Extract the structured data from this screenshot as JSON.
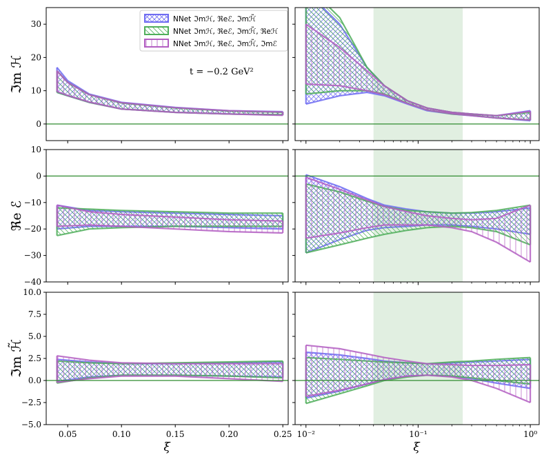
{
  "figure": {
    "annotation": "t = −0.2 GeV²",
    "colors": {
      "blue": "#6f6cf2",
      "green": "#4fae5a",
      "purple": "#b35ec2",
      "zero_line": "#2e8b2e",
      "band": "#d7ead7"
    }
  },
  "chart_data": [
    {
      "type": "area",
      "panel": "top-left",
      "ylabel": "ℑm ℋ",
      "xlabel": "",
      "xlim": [
        0.03,
        0.255
      ],
      "ylim": [
        -5,
        35
      ],
      "xticks": [
        "0.05",
        "0.10",
        "0.15",
        "0.20",
        "0.25"
      ],
      "yticks": [
        "0",
        "10",
        "20",
        "30"
      ],
      "x": [
        0.04,
        0.05,
        0.07,
        0.1,
        0.15,
        0.2,
        0.25
      ],
      "series": [
        {
          "name": "NNet ℑmℋ, ℜeℰ, ℑmℋ̃",
          "color": "#6f6cf2",
          "hatch": "cross",
          "upper": [
            17,
            13,
            9,
            6.5,
            5,
            4,
            3.7
          ],
          "lower": [
            9.5,
            8.5,
            6.5,
            4.5,
            3.5,
            3,
            2.7
          ]
        },
        {
          "name": "NNet ℑmℋ, ℜeℰ, ℑmℋ̃, ℜeℋ",
          "color": "#4fae5a",
          "hatch": "diag",
          "upper": [
            16,
            12.5,
            8.8,
            6.3,
            4.8,
            3.9,
            3.5
          ],
          "lower": [
            9.5,
            8.5,
            6.5,
            4.5,
            3.5,
            3,
            2.8
          ]
        },
        {
          "name": "NNet ℑmℋ, ℜeℰ, ℑmℋ̃, ℑmℰ",
          "color": "#b35ec2",
          "hatch": "vert",
          "upper": [
            16,
            12.5,
            8.8,
            6.4,
            4.9,
            4,
            3.6
          ],
          "lower": [
            9.8,
            8.6,
            6.6,
            4.5,
            3.5,
            3,
            2.6
          ]
        }
      ]
    },
    {
      "type": "area",
      "panel": "top-right",
      "xlabel": "",
      "xscale": "log",
      "xlim": [
        0.008,
        1.2
      ],
      "ylim": [
        -5,
        35
      ],
      "shaded_x_range": [
        0.04,
        0.25
      ],
      "x": [
        0.01,
        0.02,
        0.035,
        0.05,
        0.08,
        0.12,
        0.2,
        0.3,
        0.5,
        1.0
      ],
      "series": [
        {
          "name": "NNet ℑmℋ, ℜeℰ, ℑmℋ̃",
          "color": "#6f6cf2",
          "hatch": "cross",
          "upper": [
            40,
            30,
            17,
            11.5,
            7,
            4.8,
            3.5,
            3,
            2.5,
            4
          ],
          "lower": [
            6,
            8.5,
            9.5,
            8.5,
            6,
            4,
            3,
            2.5,
            1.8,
            1
          ]
        },
        {
          "name": "NNet ℑmℋ, ℜeℰ, ℑmℋ̃, ℜeℋ",
          "color": "#4fae5a",
          "hatch": "diag",
          "upper": [
            42,
            32,
            17,
            11.5,
            7,
            4.8,
            3.5,
            3,
            2.5,
            3.5
          ],
          "lower": [
            9,
            10,
            10,
            9,
            6.3,
            4.2,
            3,
            2.6,
            1.8,
            1.2
          ]
        },
        {
          "name": "NNet ℑmℋ, ℜeℰ, ℑmℋ̃, ℑmℰ",
          "color": "#b35ec2",
          "hatch": "vert",
          "upper": [
            30,
            23,
            16,
            11.5,
            7,
            4.8,
            3.5,
            3,
            2.5,
            3.8
          ],
          "lower": [
            12,
            11.5,
            10,
            8.8,
            6.2,
            4.2,
            3.1,
            2.5,
            1.8,
            1.2
          ]
        }
      ]
    },
    {
      "type": "area",
      "panel": "middle-left",
      "ylabel": "ℜe ℰ",
      "xlabel": "",
      "xlim": [
        0.03,
        0.255
      ],
      "ylim": [
        -40,
        10
      ],
      "xticks": [
        "0.05",
        "0.10",
        "0.15",
        "0.20",
        "0.25"
      ],
      "yticks": [
        "−40",
        "−30",
        "−20",
        "−10",
        "0",
        "10"
      ],
      "x": [
        0.04,
        0.07,
        0.1,
        0.15,
        0.2,
        0.25
      ],
      "series": [
        {
          "name": "NNet ℑmℋ, ℜeℰ, ℑmℋ̃",
          "color": "#6f6cf2",
          "hatch": "cross",
          "upper": [
            -11,
            -13,
            -13.5,
            -14,
            -14.5,
            -15
          ],
          "lower": [
            -20,
            -19,
            -19,
            -19,
            -19.5,
            -20
          ]
        },
        {
          "name": "NNet ℑmℋ, ℜeℰ, ℑmℋ̃, ℜeℋ",
          "color": "#4fae5a",
          "hatch": "diag",
          "upper": [
            -12,
            -12.5,
            -13,
            -13.5,
            -14,
            -14
          ],
          "lower": [
            -22.5,
            -20,
            -19.5,
            -19,
            -19,
            -19
          ]
        },
        {
          "name": "NNet ℑmℋ, ℜeℰ, ℑmℋ̃, ℑmℰ",
          "color": "#b35ec2",
          "hatch": "vert",
          "upper": [
            -11,
            -13.5,
            -14.5,
            -15.5,
            -16.5,
            -17
          ],
          "lower": [
            -19,
            -18.5,
            -19,
            -20,
            -21,
            -21.5
          ]
        }
      ]
    },
    {
      "type": "area",
      "panel": "middle-right",
      "xlabel": "",
      "xscale": "log",
      "xlim": [
        0.008,
        1.2
      ],
      "ylim": [
        -40,
        10
      ],
      "shaded_x_range": [
        0.04,
        0.25
      ],
      "x": [
        0.01,
        0.02,
        0.035,
        0.05,
        0.08,
        0.12,
        0.2,
        0.3,
        0.5,
        1.0
      ],
      "series": [
        {
          "name": "NNet ℑmℋ, ℜeℰ, ℑmℋ̃",
          "color": "#6f6cf2",
          "hatch": "cross",
          "upper": [
            0.5,
            -4,
            -8.5,
            -11,
            -12.5,
            -13.5,
            -14,
            -14,
            -13.5,
            -12
          ],
          "lower": [
            -29,
            -24,
            -20.5,
            -19.5,
            -19,
            -18.5,
            -18.5,
            -19,
            -20,
            -22
          ]
        },
        {
          "name": "NNet ℑmℋ, ℜeℰ, ℑmℋ̃, ℜeℋ",
          "color": "#4fae5a",
          "hatch": "diag",
          "upper": [
            -3,
            -6,
            -9.5,
            -11.5,
            -13,
            -13.5,
            -14,
            -13.8,
            -13,
            -11
          ],
          "lower": [
            -29,
            -26,
            -23.5,
            -22,
            -20.5,
            -19.5,
            -19,
            -19.5,
            -21,
            -26
          ]
        },
        {
          "name": "NNet ℑmℋ, ℜeℰ, ℑmℋ̃, ℑmℰ",
          "color": "#b35ec2",
          "hatch": "vert",
          "upper": [
            -0.5,
            -5,
            -9,
            -11.5,
            -13.5,
            -15,
            -16,
            -16.5,
            -16,
            -11
          ],
          "lower": [
            -23.5,
            -21.5,
            -19.5,
            -18.5,
            -18.5,
            -18.5,
            -19.5,
            -21,
            -25,
            -32.5
          ]
        }
      ]
    },
    {
      "type": "area",
      "panel": "bottom-left",
      "ylabel": "ℑm ℋ̃",
      "xlabel": "ξ",
      "xlim": [
        0.03,
        0.255
      ],
      "ylim": [
        -5,
        10
      ],
      "xticks": [
        "0.05",
        "0.10",
        "0.15",
        "0.20",
        "0.25"
      ],
      "yticks": [
        "−5.0",
        "−2.5",
        "0.0",
        "2.5",
        "5.0",
        "7.5",
        "10.0"
      ],
      "x": [
        0.04,
        0.07,
        0.1,
        0.15,
        0.2,
        0.25
      ],
      "series": [
        {
          "name": "NNet ℑmℋ, ℜeℰ, ℑmℋ̃",
          "color": "#6f6cf2",
          "hatch": "cross",
          "upper": [
            2.4,
            2.1,
            1.9,
            1.9,
            2,
            2.1
          ],
          "lower": [
            -0.1,
            0.4,
            0.6,
            0.6,
            0.5,
            0.4
          ]
        },
        {
          "name": "NNet ℑmℋ, ℜeℰ, ℑmℋ̃, ℜeℋ",
          "color": "#4fae5a",
          "hatch": "diag",
          "upper": [
            2.2,
            2,
            1.9,
            2,
            2.1,
            2.2
          ],
          "lower": [
            -0.3,
            0.3,
            0.6,
            0.6,
            0.5,
            0.3
          ]
        },
        {
          "name": "NNet ℑmℋ, ℜeℰ, ℑmℋ̃, ℑmℰ",
          "color": "#b35ec2",
          "hatch": "vert",
          "upper": [
            2.8,
            2.3,
            2,
            1.9,
            1.9,
            1.9
          ],
          "lower": [
            -0.2,
            0.2,
            0.5,
            0.5,
            0.2,
            -0.1
          ]
        }
      ]
    },
    {
      "type": "area",
      "panel": "bottom-right",
      "xlabel": "ξ",
      "xscale": "log",
      "xlim": [
        0.008,
        1.2
      ],
      "ylim": [
        -5,
        10
      ],
      "xticks": [
        "10⁻²",
        "10⁻¹",
        "10⁰"
      ],
      "shaded_x_range": [
        0.04,
        0.25
      ],
      "x": [
        0.01,
        0.02,
        0.035,
        0.05,
        0.08,
        0.12,
        0.2,
        0.3,
        0.5,
        1.0
      ],
      "series": [
        {
          "name": "NNet ℑmℋ, ℜeℰ, ℑmℋ̃",
          "color": "#6f6cf2",
          "hatch": "cross",
          "upper": [
            3.2,
            2.9,
            2.5,
            2.2,
            2,
            1.9,
            2,
            2.1,
            2.2,
            2.4
          ],
          "lower": [
            -2,
            -1.2,
            -0.4,
            0.1,
            0.5,
            0.6,
            0.5,
            0.2,
            -0.3,
            -0.9
          ]
        },
        {
          "name": "NNet ℑmℋ, ℜeℰ, ℑmℋ̃, ℜeℋ",
          "color": "#4fae5a",
          "hatch": "diag",
          "upper": [
            2.6,
            2.4,
            2.2,
            2.1,
            2,
            1.9,
            2.1,
            2.2,
            2.4,
            2.6
          ],
          "lower": [
            -2.6,
            -1.5,
            -0.6,
            0,
            0.4,
            0.6,
            0.5,
            0.3,
            0,
            -0.4
          ]
        },
        {
          "name": "NNet ℑmℋ, ℜeℰ, ℑmℋ̃, ℑmℰ",
          "color": "#b35ec2",
          "hatch": "vert",
          "upper": [
            4,
            3.6,
            3,
            2.6,
            2.2,
            1.9,
            1.8,
            1.7,
            1.7,
            1.8
          ],
          "lower": [
            -1.8,
            -1.1,
            -0.4,
            0.1,
            0.5,
            0.6,
            0.4,
            0,
            -0.9,
            -2.5
          ]
        }
      ]
    }
  ]
}
